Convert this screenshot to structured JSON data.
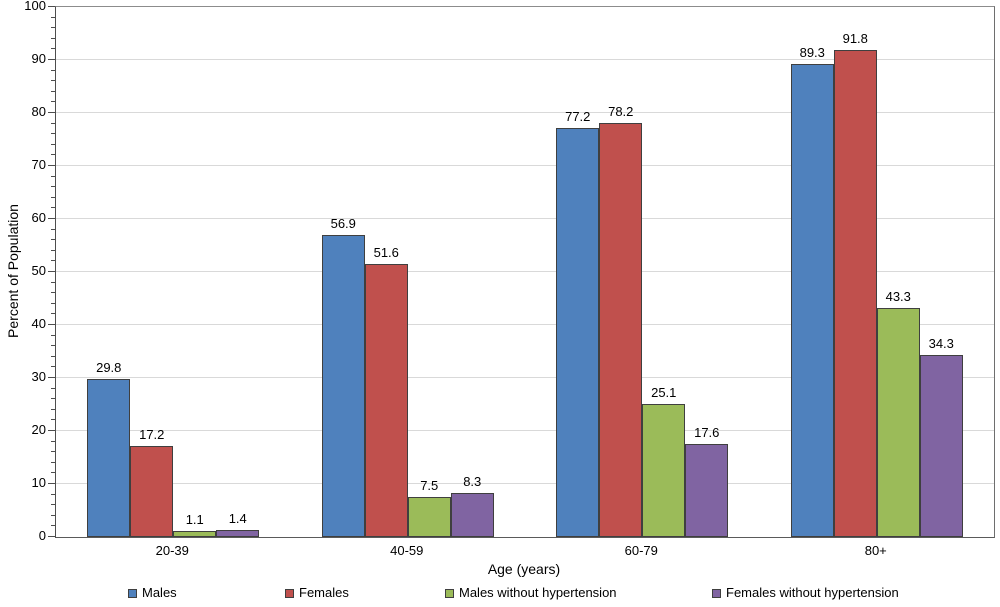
{
  "chart_data": {
    "type": "bar",
    "categories": [
      "20-39",
      "40-59",
      "60-79",
      "80+"
    ],
    "series": [
      {
        "name": "Males",
        "color": "#4F81BD",
        "values": [
          29.8,
          56.9,
          77.2,
          89.3
        ]
      },
      {
        "name": "Females",
        "color": "#C0504D",
        "values": [
          17.2,
          51.6,
          78.2,
          91.8
        ]
      },
      {
        "name": "Males without hypertension",
        "color": "#9BBB59",
        "values": [
          1.1,
          7.5,
          25.1,
          43.3
        ]
      },
      {
        "name": "Females without hypertension",
        "color": "#8064A2",
        "values": [
          1.4,
          8.3,
          17.6,
          34.3
        ]
      }
    ],
    "title": "",
    "xlabel": "Age (years)",
    "ylabel": "Percent of Population",
    "ylim": [
      0,
      100
    ],
    "yticks": [
      0,
      10,
      20,
      30,
      40,
      50,
      60,
      70,
      80,
      90,
      100
    ],
    "minor_tick_step": 2,
    "grid": true,
    "legend_position": "bottom",
    "value_labels_shown": true,
    "gridline_color": "#d9d9d9",
    "bar_outline_color": "#3f3f3f"
  }
}
